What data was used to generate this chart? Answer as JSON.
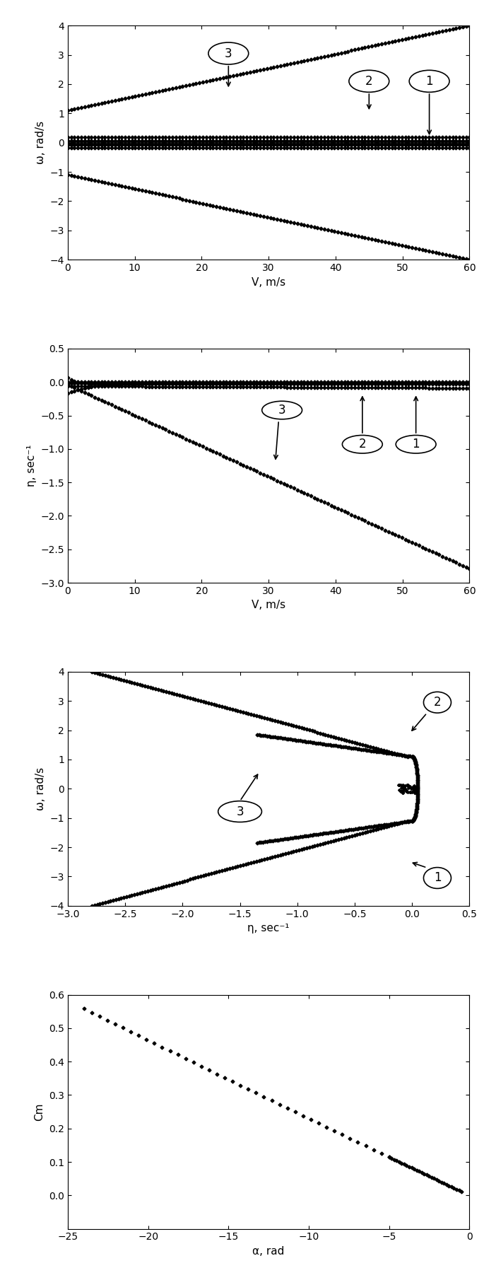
{
  "graph1": {
    "xlabel": "V, m/s",
    "ylabel": "ω, rad/s",
    "xlim": [
      0,
      60
    ],
    "ylim": [
      -4,
      4
    ],
    "xticks": [
      0,
      10,
      20,
      30,
      40,
      50,
      60
    ],
    "yticks": [
      -4,
      -3,
      -2,
      -1,
      0,
      1,
      2,
      3,
      4
    ]
  },
  "graph2": {
    "xlabel": "V, m/s",
    "ylabel": "η, sec⁻¹",
    "xlim": [
      0,
      60
    ],
    "ylim": [
      -3,
      0.5
    ],
    "xticks": [
      0,
      10,
      20,
      30,
      40,
      50,
      60
    ],
    "yticks": [
      -3,
      -2.5,
      -2,
      -1.5,
      -1,
      -0.5,
      0,
      0.5
    ]
  },
  "graph3": {
    "xlabel": "η, sec⁻¹",
    "ylabel": "ω, rad/s",
    "xlim": [
      -3,
      0.5
    ],
    "ylim": [
      -4,
      4
    ],
    "xticks": [
      -3,
      -2.5,
      -2,
      -1.5,
      -1,
      -0.5,
      0,
      0.5
    ],
    "yticks": [
      -4,
      -3,
      -2,
      -1,
      0,
      1,
      2,
      3,
      4
    ]
  },
  "graph4": {
    "xlabel": "α, rad",
    "ylabel": "Cm",
    "xlim": [
      -25,
      0
    ],
    "ylim": [
      -0.1,
      0.6
    ],
    "xticks": [
      -25,
      -20,
      -15,
      -10,
      -5,
      0
    ],
    "yticks": [
      0.0,
      0.1,
      0.2,
      0.3,
      0.4,
      0.5,
      0.6
    ]
  },
  "marker": "D",
  "markersize": 2.5,
  "color": "black",
  "figsize": [
    6.85,
    18.1
  ],
  "dpi": 100
}
